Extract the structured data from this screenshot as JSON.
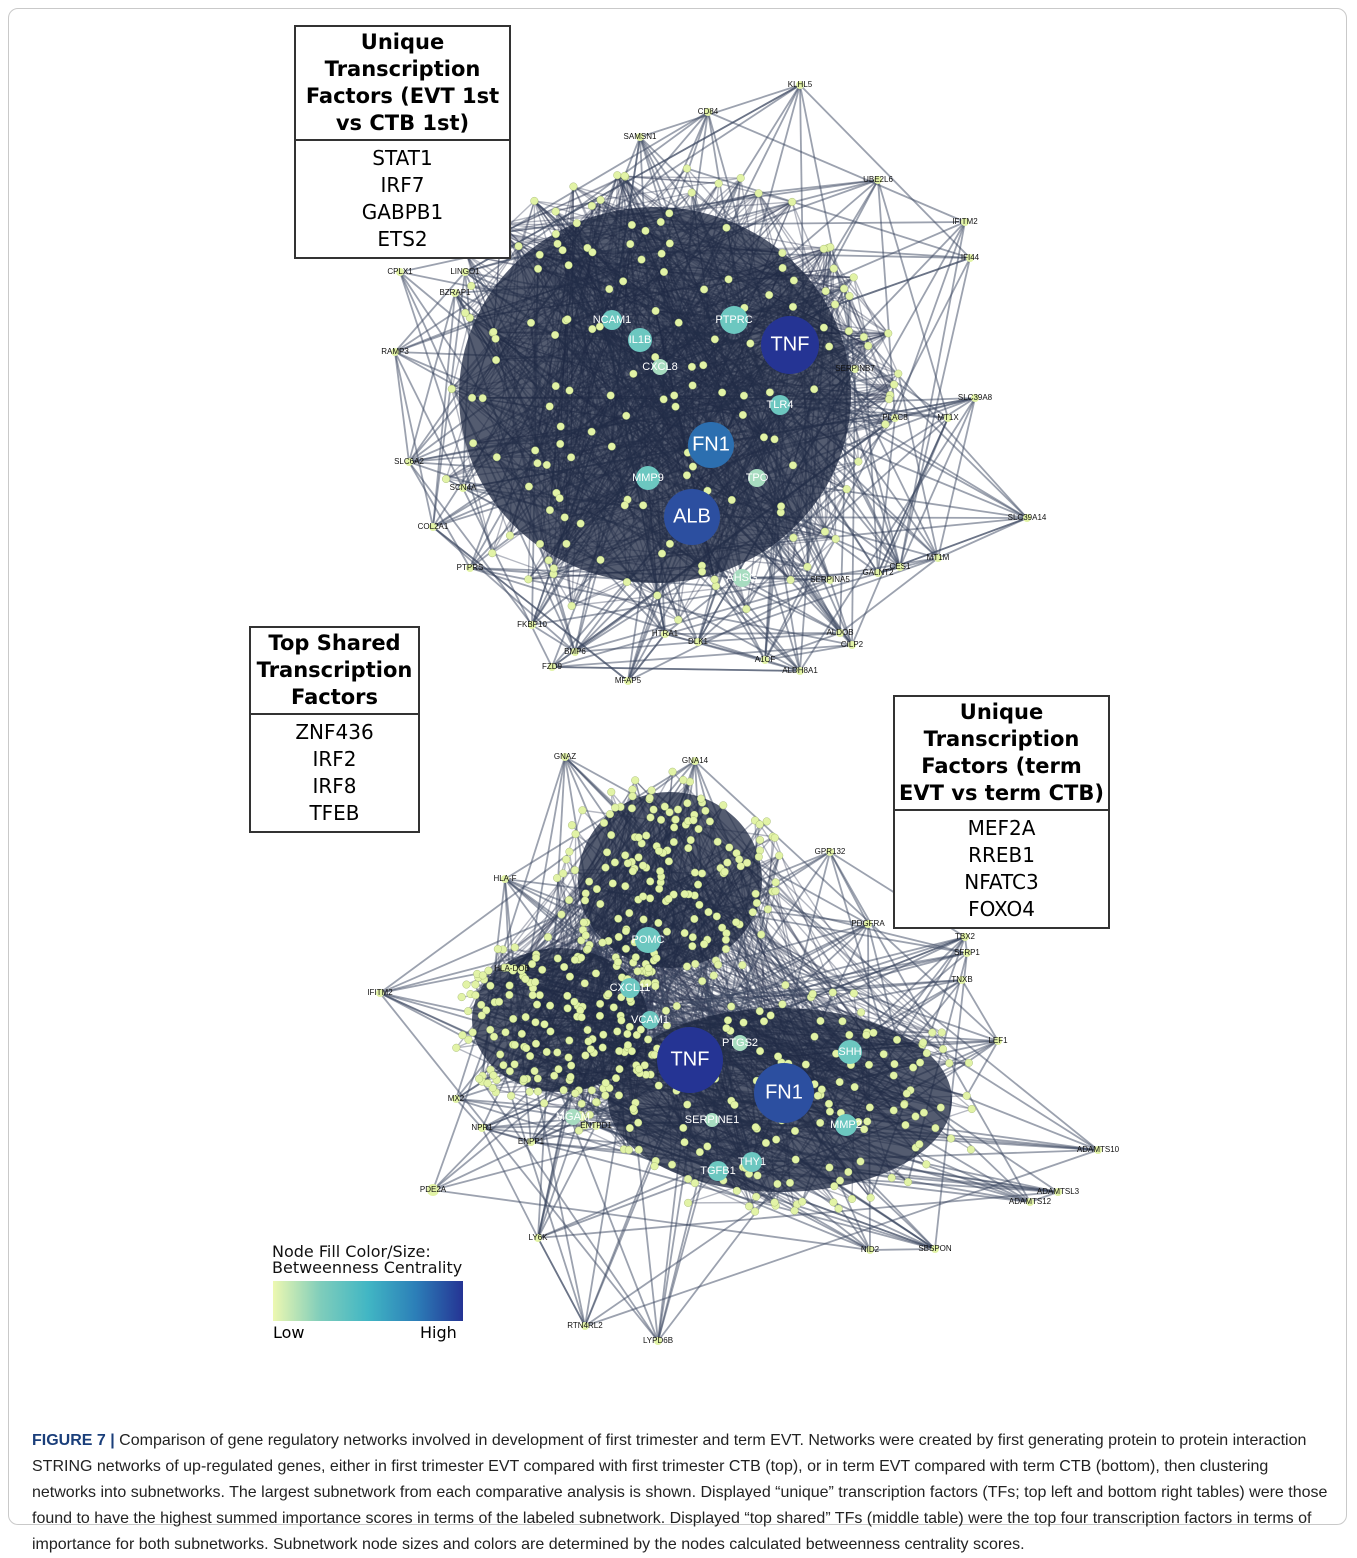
{
  "tables": [
    {
      "title_lines": [
        "Unique",
        "Transcription",
        "Factors (EVT 1st",
        "vs CTB 1st)"
      ],
      "rows": [
        "STAT1",
        "IRF7",
        "GABPB1",
        "ETS2"
      ]
    },
    {
      "title_lines": [
        "Top Shared",
        "Transcription",
        "Factors"
      ],
      "rows": [
        "ZNF436",
        "IRF2",
        "IRF8",
        "TFEB"
      ]
    },
    {
      "title_lines": [
        "Unique",
        "Transcription",
        "Factors (term",
        "EVT vs term CTB)"
      ],
      "rows": [
        "MEF2A",
        "RREB1",
        "NFATC3",
        "FOXO4"
      ]
    }
  ],
  "networks": [
    {
      "nodes": [
        "TNF",
        "FN1",
        "ALB",
        "PTPRC",
        "TLR4",
        "IL1B",
        "NCAM1",
        "CXCL8",
        "MMP9",
        "KLHL5",
        "CD84",
        "SAMSN1",
        "CPLX1",
        "LINGO1",
        "BZRAP1",
        "SLC39A8",
        "SLC39A14",
        "MT1X",
        "MT1M",
        "SERPINB7",
        "FKBP10",
        "FZD9",
        "BMP6",
        "MFAP5",
        "HTRA1",
        "A1CF",
        "ALDH8A1",
        "CILP2",
        "ALDOB",
        "GALNT2",
        "CES1",
        "SLC6A2",
        "SCN4A",
        "COL2A1",
        "PTPRS",
        "RAMP3",
        "IFI44",
        "IFITM2",
        "UBE2L6",
        "PLAC8",
        "SERPINA5",
        "DLK1",
        "AHSG",
        "TPO"
      ]
    },
    {
      "nodes": [
        "TNF",
        "FN1",
        "POMC",
        "SHH",
        "MMP2",
        "THY1",
        "TGFB1",
        "VCAM1",
        "CXCL11",
        "PTGS2",
        "SERPINE1",
        "GNAZ",
        "GNA14",
        "GPR132",
        "TBX2",
        "SFRP1",
        "TNXB",
        "LEF1",
        "ADAMTS10",
        "ADAMTSL3",
        "ADAMTS12",
        "SBSPON",
        "NID2",
        "PDE2A",
        "NPR1",
        "ENPP1",
        "IFITM2",
        "HLA-F",
        "MX2",
        "PDGFRA",
        "RTN4RL2",
        "LYPD6B",
        "LY6K",
        "HLA-DOB",
        "MGAM",
        "ENTPD1"
      ]
    }
  ],
  "legend": {
    "title_lines": [
      "Node Fill Color/Size:",
      "Betweenness Centrality"
    ],
    "low": "Low",
    "high": "High"
  },
  "caption": {
    "label": "FIGURE 7 |",
    "text": "Comparison of gene regulatory networks involved in development of first trimester and term EVT. Networks were created by first generating protein to protein interaction STRING networks of up-regulated genes, either in first trimester EVT compared with first trimester CTB (top), or in term EVT compared with term CTB (bottom), then clustering networks into subnetworks. The largest subnetwork from each comparative analysis is shown. Displayed “unique” transcription factors (TFs; top left and bottom right tables) were those found to have the highest summed importance scores in terms of the labeled subnetwork. Displayed “top shared” TFs (middle table) were the top four transcription factors in terms of importance for both subnetworks. Subnetwork node sizes and colors are determined by the nodes calculated betweenness centrality scores."
  }
}
